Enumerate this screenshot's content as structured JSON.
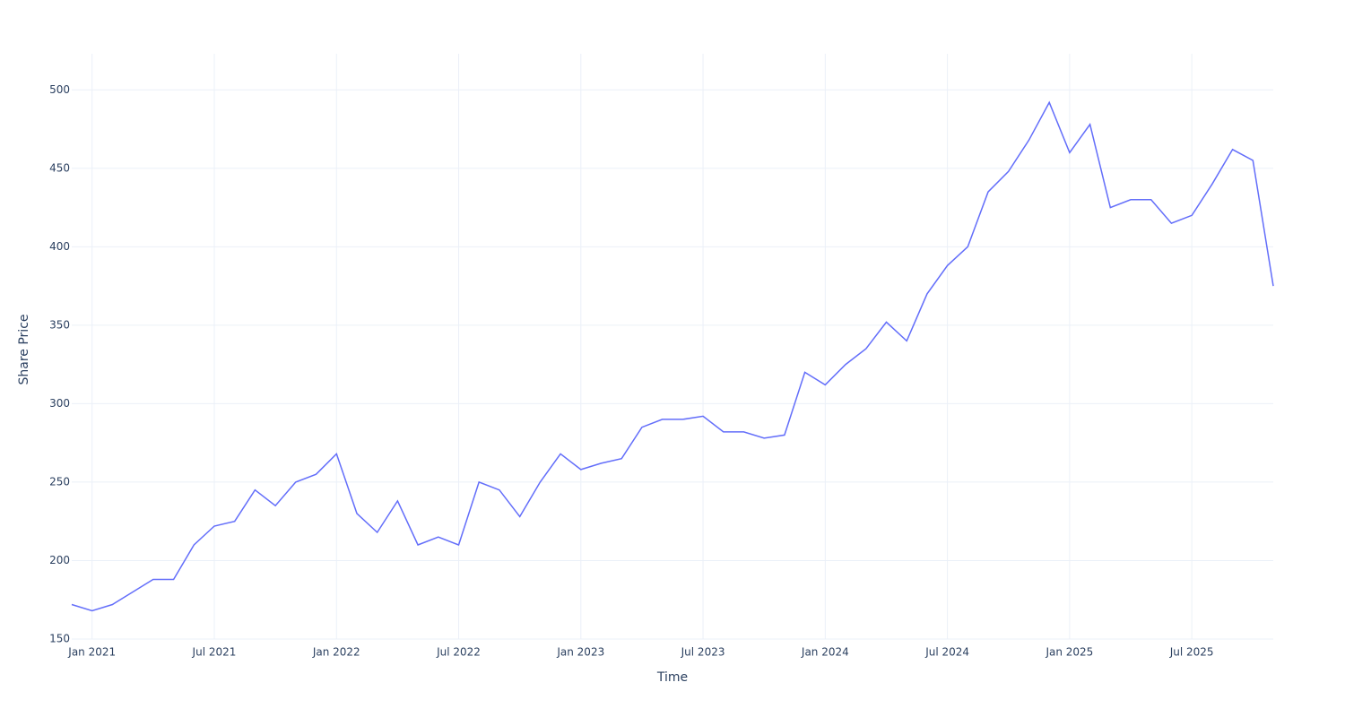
{
  "chart_data": {
    "type": "line",
    "x_label": "Time",
    "y_label": "Share Price",
    "x": [
      "2020-12",
      "2021-01",
      "2021-02",
      "2021-03",
      "2021-04",
      "2021-05",
      "2021-06",
      "2021-07",
      "2021-08",
      "2021-09",
      "2021-10",
      "2021-11",
      "2021-12",
      "2022-01",
      "2022-02",
      "2022-03",
      "2022-04",
      "2022-05",
      "2022-06",
      "2022-07",
      "2022-08",
      "2022-09",
      "2022-10",
      "2022-11",
      "2022-12",
      "2023-01",
      "2023-02",
      "2023-03",
      "2023-04",
      "2023-05",
      "2023-06",
      "2023-07",
      "2023-08",
      "2023-09",
      "2023-10",
      "2023-11",
      "2023-12",
      "2024-01",
      "2024-02",
      "2024-03",
      "2024-04",
      "2024-05",
      "2024-06",
      "2024-07",
      "2024-08",
      "2024-09",
      "2024-10",
      "2024-11",
      "2024-12",
      "2025-01",
      "2025-02",
      "2025-03",
      "2025-04",
      "2025-05",
      "2025-06",
      "2025-07",
      "2025-08",
      "2025-09",
      "2025-10",
      "2025-11"
    ],
    "values": [
      172,
      168,
      172,
      180,
      188,
      188,
      210,
      222,
      225,
      245,
      235,
      250,
      255,
      268,
      230,
      218,
      238,
      210,
      215,
      210,
      250,
      245,
      228,
      250,
      268,
      258,
      262,
      265,
      285,
      290,
      290,
      292,
      282,
      282,
      278,
      280,
      320,
      312,
      325,
      335,
      352,
      340,
      370,
      388,
      400,
      435,
      448,
      468,
      492,
      460,
      478,
      425,
      430,
      430,
      415,
      420,
      440,
      462,
      455,
      375
    ],
    "color": "#636efa",
    "xlim": [
      "2020-12",
      "2025-11"
    ],
    "xticks": [
      {
        "value": "2021-01",
        "label": "Jan 2021"
      },
      {
        "value": "2021-07",
        "label": "Jul 2021"
      },
      {
        "value": "2022-01",
        "label": "Jan 2022"
      },
      {
        "value": "2022-07",
        "label": "Jul 2022"
      },
      {
        "value": "2023-01",
        "label": "Jan 2023"
      },
      {
        "value": "2023-07",
        "label": "Jul 2023"
      },
      {
        "value": "2024-01",
        "label": "Jan 2024"
      },
      {
        "value": "2024-07",
        "label": "Jul 2024"
      },
      {
        "value": "2025-01",
        "label": "Jan 2025"
      },
      {
        "value": "2025-07",
        "label": "Jul 2025"
      }
    ],
    "ylim": [
      150,
      523
    ],
    "yticks": [
      150,
      200,
      250,
      300,
      350,
      400,
      450,
      500
    ],
    "grid": true
  }
}
